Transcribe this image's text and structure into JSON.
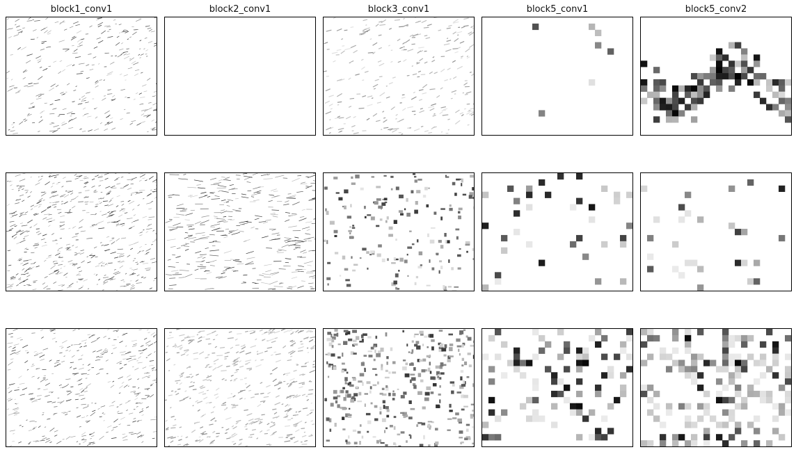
{
  "chart_data": {
    "type": "heatmap",
    "description_kind": "grid of feature-map activation images",
    "colormap": "grayscale (white = low, black = high)",
    "columns": [
      "block1_conv1",
      "block2_conv1",
      "block3_conv1",
      "block5_conv1",
      "block5_conv2"
    ],
    "rows": 3,
    "axes": "hidden (no ticks)",
    "panels": [
      [
        {
          "layer": "block1_conv1",
          "style": "fine-texture",
          "density": 0.35
        },
        {
          "layer": "block2_conv1",
          "style": "blank",
          "density": 0.0
        },
        {
          "layer": "block3_conv1",
          "style": "soft-texture",
          "density": 0.3
        },
        {
          "layer": "block5_conv1",
          "style": "sparse-blocks",
          "density": 0.02
        },
        {
          "layer": "block5_conv2",
          "style": "blob-blocks",
          "density": 0.35
        }
      ],
      [
        {
          "layer": "block1_conv1",
          "style": "dense-texture",
          "density": 0.6
        },
        {
          "layer": "block2_conv1",
          "style": "streaks",
          "density": 0.4
        },
        {
          "layer": "block3_conv1",
          "style": "speckle",
          "density": 0.25
        },
        {
          "layer": "block5_conv1",
          "style": "sparse-blocks",
          "density": 0.08
        },
        {
          "layer": "block5_conv2",
          "style": "sparse-blocks",
          "density": 0.06
        }
      ],
      [
        {
          "layer": "block1_conv1",
          "style": "fine-texture",
          "density": 0.45
        },
        {
          "layer": "block2_conv1",
          "style": "soft-texture",
          "density": 0.5
        },
        {
          "layer": "block3_conv1",
          "style": "speckle",
          "density": 0.5
        },
        {
          "layer": "block5_conv1",
          "style": "scatter-blocks",
          "density": 0.2
        },
        {
          "layer": "block5_conv2",
          "style": "scatter-blocks",
          "density": 0.3
        }
      ]
    ]
  }
}
